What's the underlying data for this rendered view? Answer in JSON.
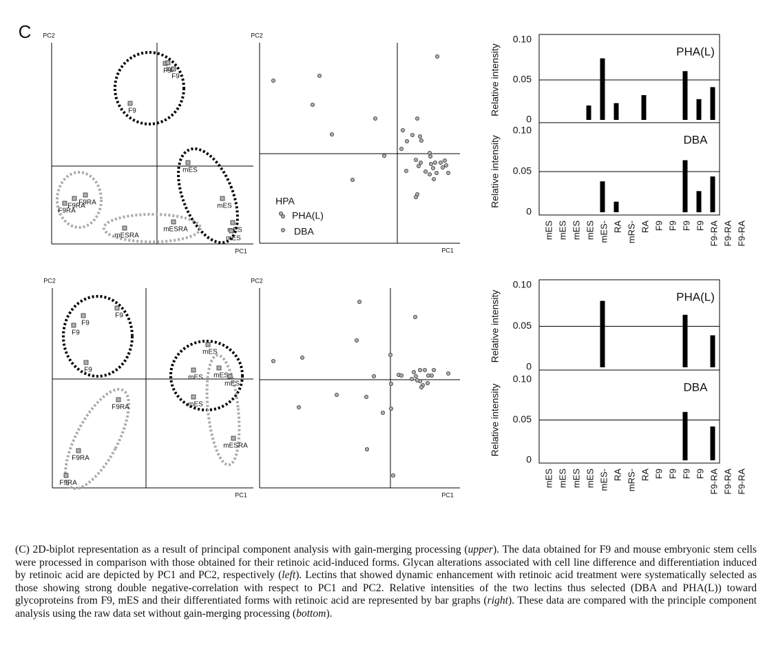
{
  "panel_label": "C",
  "chart_data": [
    {
      "type": "scatter",
      "x_label": "PC1",
      "y_label": "PC2",
      "xlim": [
        -153,
        140
      ],
      "ylim": [
        -113,
        179
      ],
      "x": [
        12,
        16,
        24,
        -39,
        45,
        95,
        110,
        108,
        -104,
        -120,
        -134,
        -47,
        24
      ],
      "y": [
        149,
        150,
        141,
        91,
        5,
        -47,
        -82,
        -94,
        -42,
        -47,
        -54,
        -90,
        -81
      ],
      "labels": [
        "F9",
        "F9",
        "F9",
        "F9",
        "mES",
        "mES",
        "mES",
        "mES",
        "F9RA",
        "F9RA",
        "F9RA",
        "mESRA",
        "mESRA"
      ]
    },
    {
      "type": "scatter",
      "x_label": "PC1",
      "y_label": "PC2",
      "xlim": [
        -200,
        91
      ],
      "ylim": [
        -130,
        161
      ],
      "x": [
        -180,
        -113,
        -123,
        -95,
        -32,
        -19,
        -65,
        58,
        29,
        8,
        14,
        22,
        33,
        35,
        6,
        47,
        48,
        49,
        27,
        34,
        55,
        63,
        66,
        71,
        74,
        52,
        47,
        53,
        57,
        41,
        31,
        13,
        29,
        27,
        69,
        -169,
        -166,
        -166
      ],
      "y": [
        106,
        113,
        71,
        28,
        51,
        -3,
        -38,
        141,
        51,
        34,
        18,
        27,
        25,
        19,
        7,
        1,
        -4,
        -15,
        -9,
        -13,
        -13,
        -13,
        -20,
        -17,
        -28,
        -21,
        -30,
        -37,
        -28,
        -26,
        -18,
        -25,
        -59,
        -63,
        -10,
        -87,
        -91,
        -111
      ],
      "labels": [
        null,
        null,
        null,
        null,
        null,
        null,
        null,
        null,
        null,
        null,
        null,
        null,
        null,
        null,
        null,
        null,
        null,
        null,
        null,
        null,
        null,
        null,
        null,
        null,
        null,
        null,
        null,
        null,
        null,
        null,
        null,
        null,
        null,
        null,
        null,
        "HPA",
        "PHA(L)",
        "DBA"
      ]
    },
    {
      "type": "bar",
      "title": "PHA(L)",
      "y_label": "Relative intensity",
      "color": "#000000",
      "values": [
        null,
        null,
        null,
        0.018,
        0.077,
        0.021,
        null,
        0.031,
        null,
        null,
        0.061,
        0.026,
        0.041,
        null,
        null
      ],
      "ylim": [
        0,
        0.1
      ],
      "yticks": [
        {
          "value": 0.1,
          "label": "0.10"
        },
        0.05,
        0
      ]
    },
    {
      "type": "bar",
      "title": "DBA",
      "y_label": "Relative intensity",
      "color": "#000000",
      "categories": [
        "mES",
        "mES",
        "mES",
        "mES",
        "mES-",
        "RA",
        "mRS-",
        "RA",
        "F9",
        "F9",
        "F9",
        "F9",
        "F9-RA",
        "F9-RA",
        "F9-RA"
      ],
      "values": [
        null,
        null,
        null,
        null,
        0.038,
        0.013,
        null,
        null,
        null,
        null,
        0.064,
        0.026,
        0.044,
        null,
        null
      ],
      "ylim": [
        0,
        0.1
      ],
      "yticks": [
        {
          "value": 0.1,
          "label": "0.10"
        },
        0.05,
        0
      ]
    },
    {
      "type": "scatter",
      "x_label": "PC1",
      "y_label": "PC2",
      "xlim": [
        -136,
        156
      ],
      "ylim": [
        -158,
        132
      ],
      "x": [
        -42,
        -91,
        -105,
        -87,
        90,
        69,
        106,
        122,
        69,
        -40,
        -98,
        -116,
        127
      ],
      "y": [
        103,
        92,
        78,
        24,
        50,
        13,
        16,
        4,
        -26,
        -30,
        -104,
        -140,
        -86
      ],
      "labels": [
        "F9",
        "F9",
        "F9",
        "F9",
        "mES",
        "mES",
        "mES",
        "mES",
        "mES",
        "F9RA",
        "F9RA",
        "F9RA",
        "mESRA"
      ]
    },
    {
      "type": "scatter",
      "x_label": "PC1",
      "y_label": "PC2",
      "xlim": [
        -190,
        101
      ],
      "ylim": [
        -157,
        133
      ],
      "x": [
        -170,
        -128,
        -45,
        -49,
        36,
        0,
        -24,
        12,
        16,
        34,
        37,
        43,
        50,
        55,
        60,
        63,
        84,
        43,
        47,
        54,
        45,
        39,
        31,
        -78,
        -35,
        1,
        -11,
        1,
        -133,
        -34,
        4
      ],
      "y": [
        27,
        32,
        113,
        57,
        91,
        36,
        5,
        7,
        6,
        11,
        5,
        14,
        14,
        6,
        6,
        14,
        9,
        -2,
        -8,
        -5,
        -11,
        -1,
        1,
        -22,
        -25,
        -6,
        -48,
        -42,
        -40,
        -101,
        -139
      ],
      "labels": [
        null,
        null,
        null,
        null,
        null,
        null,
        null,
        null,
        null,
        null,
        null,
        null,
        null,
        null,
        null,
        null,
        null,
        null,
        null,
        null,
        null,
        null,
        null,
        null,
        null,
        null,
        null,
        null,
        null,
        null,
        null
      ]
    },
    {
      "type": "bar",
      "title": "PHA(L)",
      "y_label": "Relative intensity",
      "color": "#000000",
      "values": [
        null,
        null,
        null,
        null,
        0.081,
        null,
        null,
        null,
        null,
        null,
        0.064,
        null,
        0.039,
        null,
        null
      ],
      "ylim": [
        0,
        0.1
      ],
      "yticks": [
        {
          "value": 0.1,
          "label": "0.10"
        },
        0.05,
        0
      ]
    },
    {
      "type": "bar",
      "title": "DBA",
      "y_label": "Relative intensity",
      "color": "#000000",
      "categories": [
        "mES",
        "mES",
        "mES",
        "mES",
        "mES-",
        "RA",
        "mRS-",
        "RA",
        "F9",
        "F9",
        "F9",
        "F9",
        "F9-RA",
        "F9-RA",
        "F9-RA"
      ],
      "values": [
        null,
        null,
        null,
        null,
        null,
        null,
        null,
        null,
        null,
        null,
        0.06,
        null,
        0.042,
        null,
        null
      ],
      "ylim": [
        0,
        0.1
      ],
      "yticks": [
        {
          "value": 0.1,
          "label": "0.10"
        },
        0.05,
        0
      ]
    }
  ],
  "caption": [
    "(C) 2D-biplot representation as a result of principal component analysis with gain-merging processing (",
    "upper",
    "). The data obtained for F9 and mouse embryonic stem cells were processed in comparison with those obtained for their retinoic acid-induced forms. Glycan alterations associated with cell line difference and differentiation induced by retinoic acid are depicted by PC1 and PC2, respectively (",
    "left",
    "). Lectins that showed dynamic enhancement with retinoic acid treatment were systematically selected as those showing strong double negative-correlation with respect to PC1 and PC2. Relative intensities of the two lectins thus selected (DBA and PHA(L)) toward glycoproteins from F9, mES and their differentiated forms with retinoic acid are represented by bar graphs (",
    "right",
    "). These data are compared with the principle component analysis using the raw data set without gain-merging processing (",
    "bottom",
    ")."
  ]
}
